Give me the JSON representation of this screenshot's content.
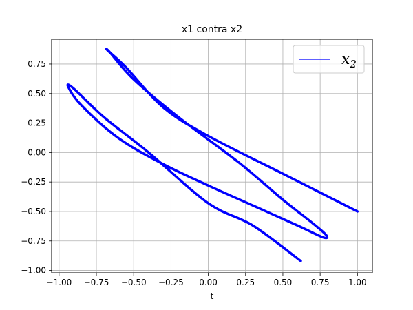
{
  "chart_data": {
    "type": "line",
    "title": "x1 contra x2",
    "xlabel": "t",
    "ylabel": "",
    "xlim": [
      -1.05,
      1.1
    ],
    "ylim": [
      -1.02,
      0.96
    ],
    "xticks": [
      -1.0,
      -0.75,
      -0.5,
      -0.25,
      0.0,
      0.25,
      0.5,
      0.75,
      1.0
    ],
    "xtick_labels": [
      "−1.00",
      "−0.75",
      "−0.50",
      "−0.25",
      "0.00",
      "0.25",
      "0.50",
      "0.75",
      "1.00"
    ],
    "yticks": [
      -1.0,
      -0.75,
      -0.5,
      -0.25,
      0.0,
      0.25,
      0.5,
      0.75
    ],
    "ytick_labels": [
      "−1.00",
      "−0.75",
      "−0.50",
      "−0.25",
      "0.00",
      "0.25",
      "0.50",
      "0.75"
    ],
    "grid": true,
    "legend": {
      "position": "top-right",
      "label": "x",
      "label_sub": "2"
    },
    "series": [
      {
        "color": "#0000ff",
        "x": [
          1.0,
          0.5,
          0.0,
          -0.3,
          -0.55,
          -0.67,
          -0.66,
          -0.5,
          -0.2,
          0.2,
          0.5,
          0.7,
          0.79,
          0.77,
          0.6,
          0.3,
          0.0,
          -0.3,
          -0.6,
          -0.85,
          -0.94,
          -0.9,
          -0.7,
          -0.4,
          0.0,
          0.3,
          0.62
        ],
        "y": [
          -0.5,
          -0.18,
          0.14,
          0.38,
          0.72,
          0.86,
          0.85,
          0.62,
          0.3,
          -0.08,
          -0.4,
          -0.6,
          -0.7,
          -0.72,
          -0.62,
          -0.45,
          -0.28,
          -0.1,
          0.12,
          0.4,
          0.56,
          0.54,
          0.3,
          0.0,
          -0.43,
          -0.62,
          -0.92
        ]
      }
    ]
  }
}
